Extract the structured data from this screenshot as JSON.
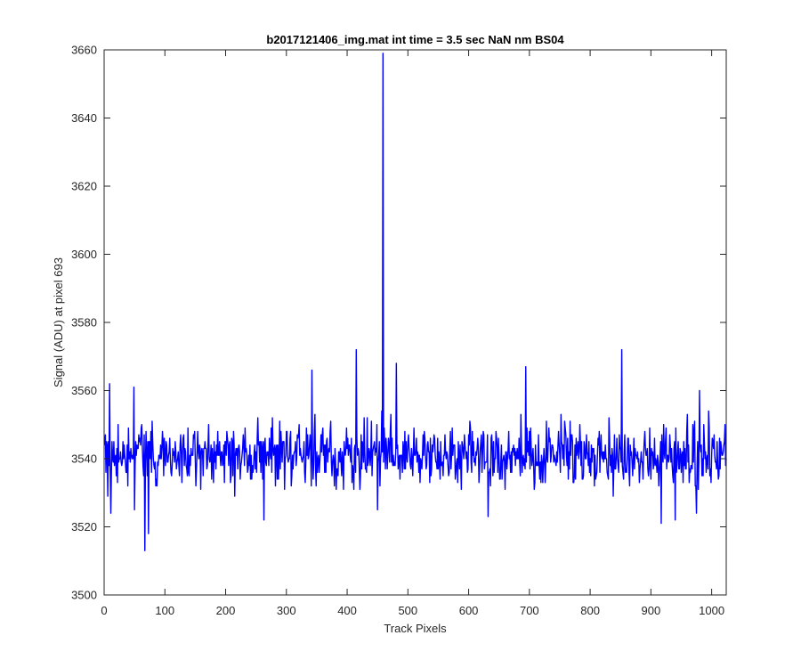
{
  "chart_data": {
    "type": "line",
    "title": "b2017121406_img.mat int time = 3.5 sec  NaN nm BS04",
    "xlabel": "Track Pixels",
    "ylabel": "Signal (ADU) at pixel 693",
    "xlim": [
      0,
      1024
    ],
    "ylim": [
      3500,
      3660
    ],
    "xticks": [
      0,
      100,
      200,
      300,
      400,
      500,
      600,
      700,
      800,
      900,
      1000
    ],
    "yticks": [
      3500,
      3520,
      3540,
      3560,
      3580,
      3600,
      3620,
      3640,
      3660
    ],
    "grid": false,
    "legend": "none",
    "series": [
      {
        "color": "#0000ff",
        "n_points": 1024,
        "baseline": 3541,
        "noise_low": 3529,
        "noise_high": 3555,
        "peaks": [
          {
            "x": 459,
            "y": 3659
          },
          {
            "x": 415,
            "y": 3572
          },
          {
            "x": 852,
            "y": 3572
          },
          {
            "x": 481,
            "y": 3568
          },
          {
            "x": 342,
            "y": 3566
          },
          {
            "x": 694,
            "y": 3567
          },
          {
            "x": 9,
            "y": 3562
          },
          {
            "x": 49,
            "y": 3561
          },
          {
            "x": 980,
            "y": 3560
          }
        ],
        "troughs": [
          {
            "x": 67,
            "y": 3513
          },
          {
            "x": 73,
            "y": 3518
          },
          {
            "x": 11,
            "y": 3524
          },
          {
            "x": 50,
            "y": 3525
          },
          {
            "x": 917,
            "y": 3521
          },
          {
            "x": 940,
            "y": 3522
          },
          {
            "x": 263,
            "y": 3522
          },
          {
            "x": 450,
            "y": 3525
          },
          {
            "x": 975,
            "y": 3524
          },
          {
            "x": 632,
            "y": 3523
          }
        ]
      }
    ]
  }
}
